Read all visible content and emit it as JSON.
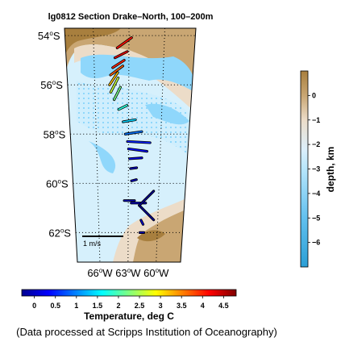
{
  "chart_data": {
    "type": "vector-map",
    "title": "lg0812 Section Drake–North, 100–200m",
    "lat_ticks": [
      {
        "deg": "54",
        "hemi": "S",
        "lat": -54
      },
      {
        "deg": "56",
        "hemi": "S",
        "lat": -56
      },
      {
        "deg": "58",
        "hemi": "S",
        "lat": -58
      },
      {
        "deg": "60",
        "hemi": "S",
        "lat": -60
      },
      {
        "deg": "62",
        "hemi": "S",
        "lat": -62
      }
    ],
    "lon_ticks": [
      {
        "deg": "66",
        "hemi": "W",
        "lon": -66
      },
      {
        "deg": "63",
        "hemi": "W",
        "lon": -63
      },
      {
        "deg": "60",
        "hemi": "W",
        "lon": -60
      }
    ],
    "lat_range": [
      -63.2,
      -53.7
    ],
    "lon_range": [
      -68.4,
      -57.4
    ],
    "scale_label": "1 m/s",
    "temperature_colorbar": {
      "label": "Temperature, deg C",
      "range": [
        -0.3,
        4.8
      ],
      "ticks": [
        "0",
        "0.5",
        "1",
        "1.5",
        "2",
        "2.5",
        "3",
        "3.5",
        "4",
        "4.5"
      ]
    },
    "depth_colorbar": {
      "label": "depth, km",
      "range": [
        -7,
        1
      ],
      "ticks": [
        "0",
        "−1",
        "−2",
        "−3",
        "−4",
        "−5",
        "−6"
      ]
    },
    "vectors": [
      {
        "lon": -64.0,
        "lat": -54.5,
        "u": 0.35,
        "v": 0.25,
        "temp": 4.1
      },
      {
        "lon": -64.2,
        "lat": -54.9,
        "u": 0.3,
        "v": 0.15,
        "temp": 4.3
      },
      {
        "lon": -64.4,
        "lat": -55.3,
        "u": 0.28,
        "v": 0.18,
        "temp": 4.0
      },
      {
        "lon": -64.6,
        "lat": -55.6,
        "u": 0.3,
        "v": 0.22,
        "temp": 3.7
      },
      {
        "lon": -64.7,
        "lat": -56.0,
        "u": 0.2,
        "v": 0.3,
        "temp": 3.2
      },
      {
        "lon": -64.6,
        "lat": -56.3,
        "u": 0.18,
        "v": 0.35,
        "temp": 2.6
      },
      {
        "lon": -64.3,
        "lat": -56.6,
        "u": 0.15,
        "v": 0.3,
        "temp": 2.2
      },
      {
        "lon": -63.9,
        "lat": -57.0,
        "u": 0.2,
        "v": 0.1,
        "temp": 1.8
      },
      {
        "lon": -63.5,
        "lat": -57.5,
        "u": 0.3,
        "v": 0.05,
        "temp": 1.4
      },
      {
        "lon": -63.3,
        "lat": -58.0,
        "u": 0.4,
        "v": 0.06,
        "temp": 0.9
      },
      {
        "lon": -63.1,
        "lat": -58.3,
        "u": 0.55,
        "v": -0.03,
        "temp": 0.5
      },
      {
        "lon": -63.0,
        "lat": -58.6,
        "u": 0.45,
        "v": -0.06,
        "temp": 0.4
      },
      {
        "lon": -62.9,
        "lat": -59.0,
        "u": 0.3,
        "v": 0.02,
        "temp": 0.2
      },
      {
        "lon": -62.8,
        "lat": -59.4,
        "u": 0.15,
        "v": 0.02,
        "temp": 0.0
      },
      {
        "lon": -62.7,
        "lat": -59.9,
        "u": 0.12,
        "v": 0.03,
        "temp": 0.0
      },
      {
        "lon": -63.4,
        "lat": -60.7,
        "u": 0.25,
        "v": 0.0,
        "temp": -0.1
      },
      {
        "lon": -62.7,
        "lat": -60.8,
        "u": 0.35,
        "v": 0.0,
        "temp": 0.0
      },
      {
        "lon": -61.9,
        "lat": -60.9,
        "u": 0.35,
        "v": -0.35,
        "temp": -0.2
      },
      {
        "lon": -61.9,
        "lat": -60.9,
        "u": 0.35,
        "v": 0.35,
        "temp": -0.2
      },
      {
        "lon": -61.7,
        "lat": -61.5,
        "u": 0.05,
        "v": -0.1,
        "temp": 0.1
      },
      {
        "lon": -61.8,
        "lat": -62.0,
        "u": 0.1,
        "v": 0.0,
        "temp": 0.0
      }
    ]
  },
  "credit": "(Data processed at Scripps Institution of Oceanography)"
}
